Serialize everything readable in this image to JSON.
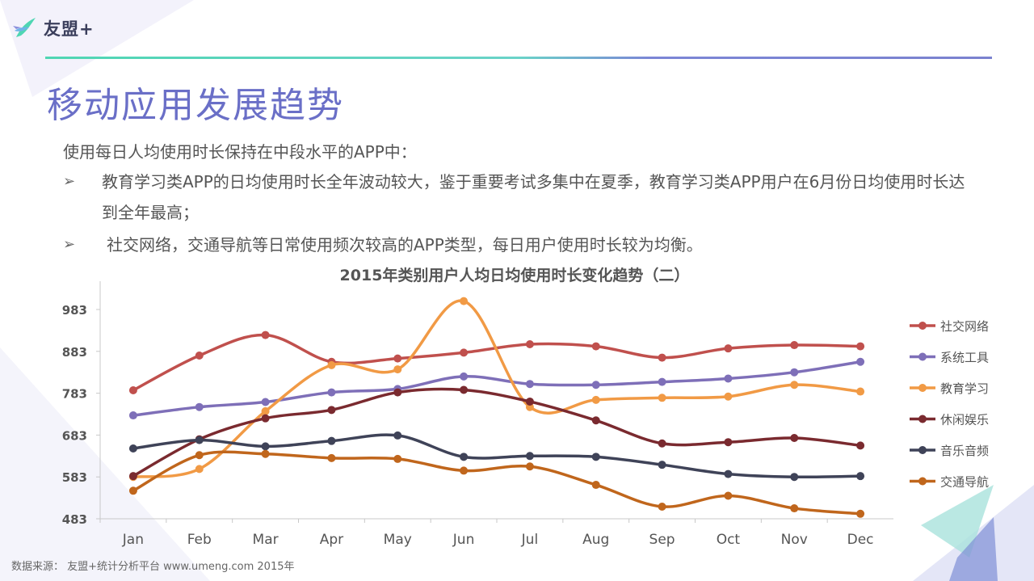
{
  "header": {
    "logo_text": "友盟+"
  },
  "page": {
    "title": "移动应用发展趋势",
    "intro": "使用每日人均使用时长保持在中段水平的APP中：",
    "bullets": [
      {
        "marker": "➢",
        "text": "教育学习类APP的日均使用时长全年波动较大，鉴于重要考试多集中在夏季，教育学习类APP用户在6月份日均使用时长达到全年最高；"
      },
      {
        "marker": "➢",
        "text": "社交网络，交通导航等日常使用频次较高的APP类型，每日用户使用时长较为均衡。"
      }
    ],
    "source": "数据来源： 友盟+统计分析平台 www.umeng.com 2015年"
  },
  "colors": {
    "accent": "#6a6fc7",
    "divider_start": "#4fd6b3",
    "divider_end": "#7a82cf"
  },
  "chart_data": {
    "type": "line",
    "title": "2015年类别用户人均日均使用时长变化趋势（二）",
    "xlabel": "",
    "ylabel": "",
    "categories": [
      "Jan",
      "Feb",
      "Mar",
      "Apr",
      "May",
      "Jun",
      "Jul",
      "Aug",
      "Sep",
      "Oct",
      "Nov",
      "Dec"
    ],
    "yticks": [
      "983",
      "883",
      "783",
      "683",
      "583",
      "483"
    ],
    "ylim": [
      483,
      983
    ],
    "grid": false,
    "legend_position": "right",
    "smooth": true,
    "series": [
      {
        "name": "社交网络",
        "color": "#c0504d",
        "values": [
          790,
          873,
          922,
          858,
          866,
          880,
          900,
          895,
          868,
          890,
          898,
          895
        ]
      },
      {
        "name": "系统工具",
        "color": "#7e6fb8",
        "values": [
          730,
          750,
          762,
          785,
          793,
          823,
          805,
          803,
          810,
          818,
          833,
          858
        ]
      },
      {
        "name": "教育学习",
        "color": "#f19a45",
        "values": [
          583,
          602,
          740,
          850,
          840,
          1003,
          750,
          767,
          772,
          775,
          803,
          787
        ]
      },
      {
        "name": "休闲娱乐",
        "color": "#7a2a2f",
        "values": [
          585,
          673,
          723,
          743,
          785,
          791,
          763,
          718,
          663,
          666,
          676,
          658
        ]
      },
      {
        "name": "音乐音频",
        "color": "#3f4358",
        "values": [
          651,
          671,
          656,
          669,
          682,
          631,
          633,
          631,
          612,
          590,
          583,
          585
        ]
      },
      {
        "name": "交通导航",
        "color": "#c0661c",
        "values": [
          550,
          635,
          638,
          628,
          626,
          598,
          608,
          564,
          512,
          538,
          508,
          495
        ]
      }
    ]
  }
}
